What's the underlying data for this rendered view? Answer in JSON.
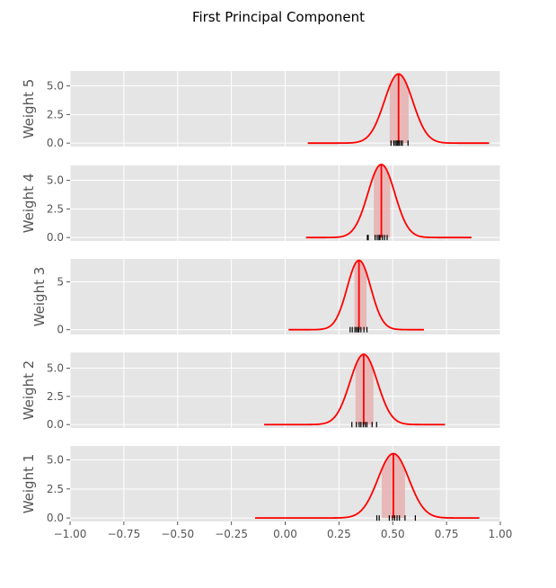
{
  "chart_data": {
    "type": "line",
    "title": "First Principal Component",
    "xlim": [
      -1.0,
      1.0
    ],
    "xticks": [
      -1.0,
      -0.75,
      -0.5,
      -0.25,
      0.0,
      0.25,
      0.5,
      0.75,
      1.0
    ],
    "xtick_labels": [
      "−1.00",
      "−0.75",
      "−0.50",
      "−0.25",
      "0.00",
      "0.25",
      "0.50",
      "0.75",
      "1.00"
    ],
    "grid": true,
    "colors": {
      "curve": "#ff0000",
      "band": "#e8b0b0",
      "rug": "#000000",
      "panel_bg": "#e5e5e5",
      "grid": "#ffffff"
    },
    "panels": [
      {
        "ylabel": "Weight 5",
        "ylim": [
          -0.3,
          6.3
        ],
        "yticks": [
          0.0,
          2.5,
          5.0
        ],
        "ytick_labels": [
          "0.0",
          "2.5",
          "5.0"
        ],
        "mean": 0.527,
        "sd": 0.066,
        "x_range": [
          0.105,
          0.948
        ],
        "band": [
          0.486,
          0.574
        ],
        "rug": [
          0.492,
          0.505,
          0.512,
          0.519,
          0.524,
          0.53,
          0.538,
          0.545,
          0.571
        ]
      },
      {
        "ylabel": "Weight 4",
        "ylim": [
          -0.3,
          6.3
        ],
        "yticks": [
          0.0,
          2.5,
          5.0
        ],
        "ytick_labels": [
          "0.0",
          "2.5",
          "5.0"
        ],
        "mean": 0.447,
        "sd": 0.0625,
        "x_range": [
          0.097,
          0.866
        ],
        "band": [
          0.412,
          0.488
        ],
        "rug": [
          0.382,
          0.386,
          0.418,
          0.428,
          0.436,
          0.441,
          0.452,
          0.462,
          0.474
        ]
      },
      {
        "ylabel": "Weight 3",
        "ylim": [
          -0.5,
          7.4
        ],
        "yticks": [
          0.0,
          5.0
        ],
        "ytick_labels": [
          "0",
          "5"
        ],
        "mean": 0.343,
        "sd": 0.055,
        "x_range": [
          0.016,
          0.645
        ],
        "band": [
          0.322,
          0.378
        ],
        "rug": [
          0.302,
          0.312,
          0.324,
          0.331,
          0.338,
          0.343,
          0.352,
          0.366,
          0.38
        ]
      },
      {
        "ylabel": "Weight 2",
        "ylim": [
          -0.3,
          6.4
        ],
        "yticks": [
          0.0,
          2.5,
          5.0
        ],
        "ytick_labels": [
          "0.0",
          "2.5",
          "5.0"
        ],
        "mean": 0.365,
        "sd": 0.064,
        "x_range": [
          -0.098,
          0.743
        ],
        "band": [
          0.327,
          0.41
        ],
        "rug": [
          0.31,
          0.331,
          0.344,
          0.352,
          0.363,
          0.372,
          0.38,
          0.404,
          0.425
        ]
      },
      {
        "ylabel": "Weight 1",
        "ylim": [
          -0.3,
          6.2
        ],
        "yticks": [
          0.0,
          2.5,
          5.0
        ],
        "ytick_labels": [
          "0.0",
          "2.5",
          "5.0"
        ],
        "mean": 0.503,
        "sd": 0.072,
        "x_range": [
          -0.14,
          0.902
        ],
        "band": [
          0.449,
          0.557
        ],
        "rug": [
          0.426,
          0.437,
          0.484,
          0.499,
          0.509,
          0.52,
          0.531,
          0.557,
          0.605
        ]
      }
    ]
  }
}
